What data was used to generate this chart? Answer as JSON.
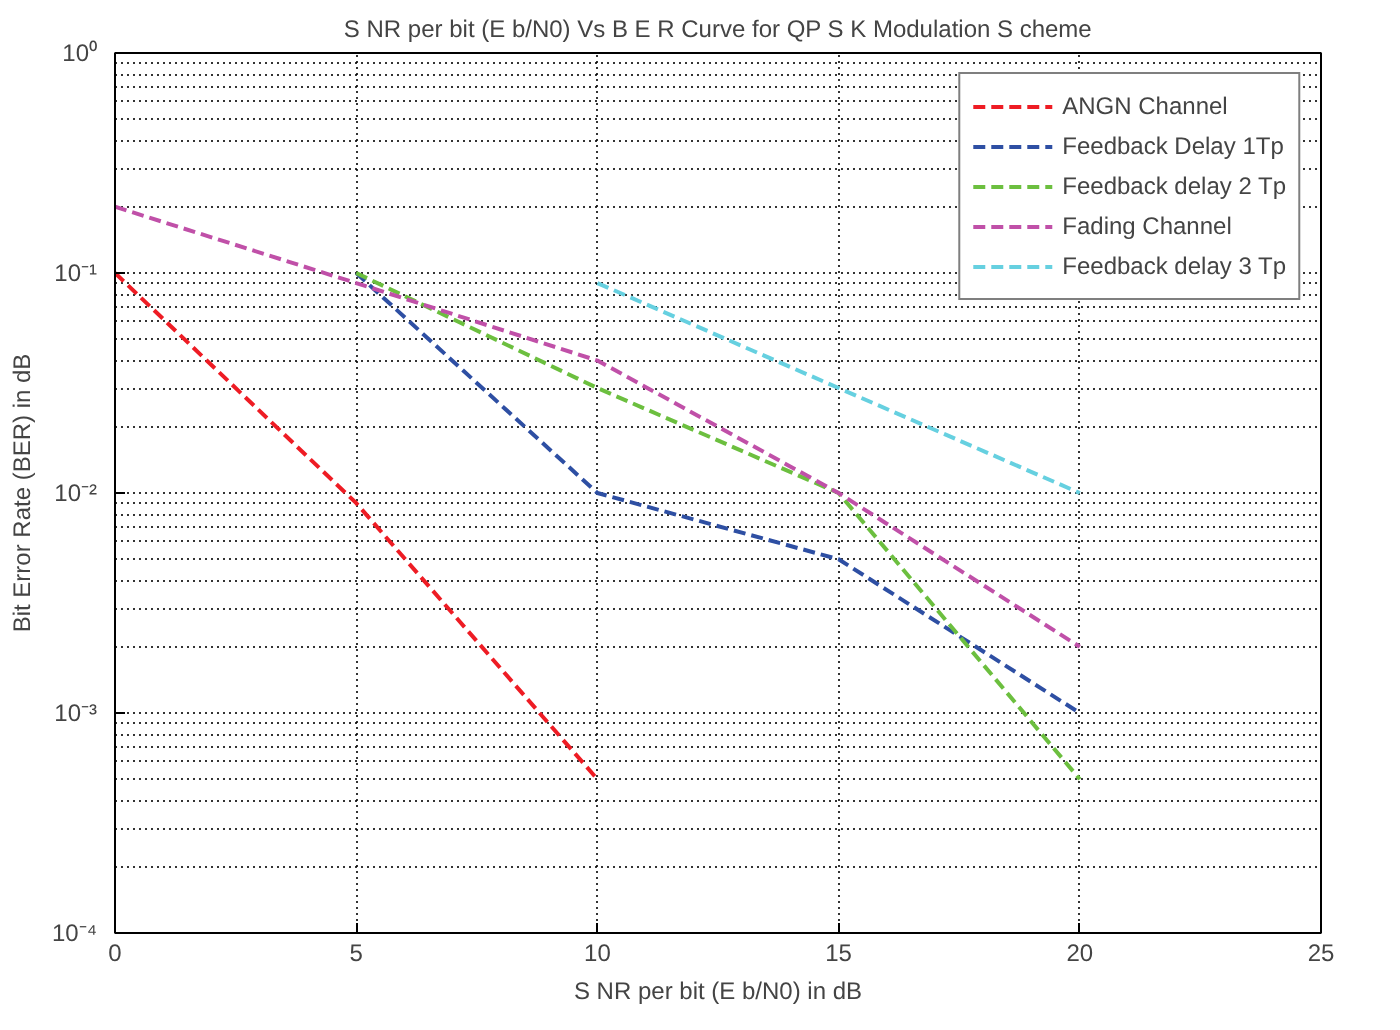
{
  "chart_data": {
    "type": "line",
    "title": "S NR per bit (E b/N0) Vs B E R Curve for QP S K Modulation S cheme",
    "xlabel": "S NR per bit (E b/N0) in dB",
    "ylabel": "Bit Error Rate (BER) in dB",
    "log": "y",
    "grid": true,
    "legend": "top right",
    "line_style": "dashed",
    "marker": "none",
    "xlim": [
      0,
      25
    ],
    "xticks": [
      0,
      5,
      10,
      15,
      20,
      25
    ],
    "ylim": [
      0.0001,
      1
    ],
    "yticks": [
      {
        "value": 0.0001,
        "label": "10⁻⁴"
      },
      {
        "value": 0.001,
        "label": "10⁻³"
      },
      {
        "value": 0.01,
        "label": "10⁻²"
      },
      {
        "value": 0.1,
        "label": "10⁻¹"
      },
      {
        "value": 1,
        "label": "10⁰"
      }
    ],
    "series": [
      {
        "name": "ANGN Channel",
        "color": "#ee1c24",
        "x": [
          0,
          5,
          10
        ],
        "values": [
          0.1,
          0.009,
          0.0005
        ]
      },
      {
        "name": "Feedback Delay 1Tp",
        "color": "#2e4fa3",
        "x": [
          5,
          10,
          15,
          20
        ],
        "values": [
          0.1,
          0.01,
          0.005,
          0.001
        ]
      },
      {
        "name": "Feedback delay 2 Tp",
        "color": "#6cbf3f",
        "x": [
          5,
          10,
          15,
          20
        ],
        "values": [
          0.1,
          0.03,
          0.01,
          0.0005
        ]
      },
      {
        "name": "Fading Channel",
        "color": "#c050a8",
        "x": [
          0,
          5,
          10,
          15,
          20
        ],
        "values": [
          0.2,
          0.09,
          0.04,
          0.01,
          0.002
        ]
      },
      {
        "name": "Feedback delay 3 Tp",
        "color": "#66d0e0",
        "x": [
          10,
          15,
          20
        ],
        "values": [
          0.09,
          0.03,
          0.01
        ]
      }
    ]
  }
}
